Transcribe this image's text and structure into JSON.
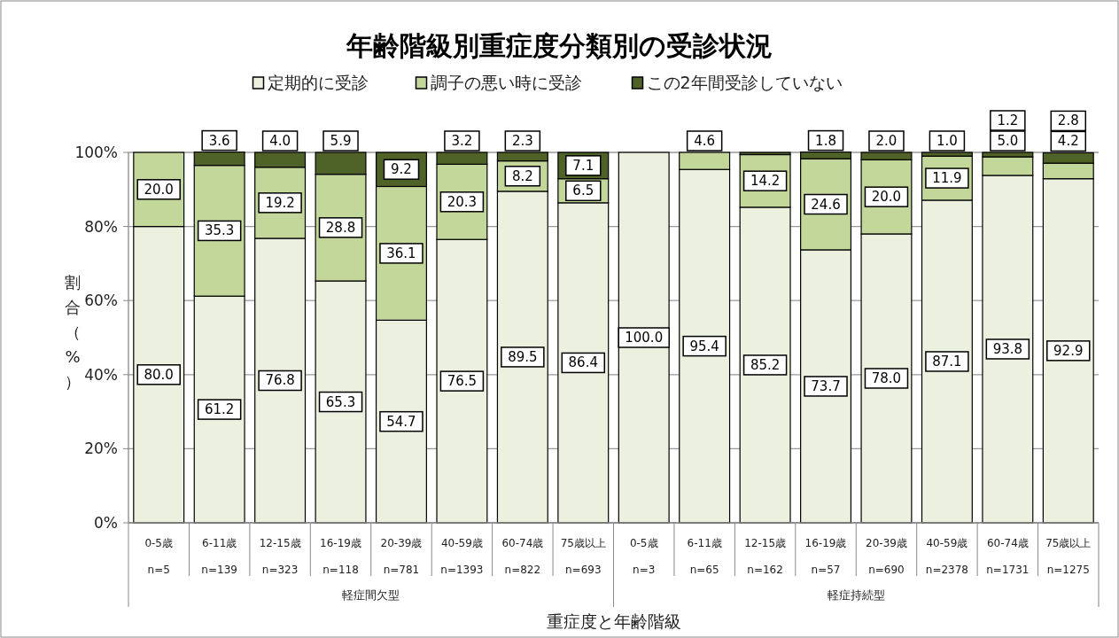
{
  "chart_data": {
    "type": "bar",
    "stacked": true,
    "title": "年齢階級別重症度分類別の受診状況",
    "xlabel": "重症度と年齢階級",
    "ylabel": "割合（%）",
    "categories": [
      "0-5歳\nn=5",
      "6-11歳\nn=139",
      "12-15歳\nn=323",
      "16-19歳\nn=118",
      "20-39歳\nn=781",
      "40-59歳\nn=1393",
      "60-74歳\nn=822",
      "75歳以上\nn=693",
      "0-5歳\nn=3",
      "6-11歳\nn=65",
      "12-15歳\nn=162",
      "16-19歳\nn=57",
      "20-39歳\nn=690",
      "40-59歳\nn=2378",
      "60-74歳\nn=1731",
      "75歳以上\nn=1275"
    ],
    "annotations": [
      "軽症間欠型",
      "軽症持続型"
    ],
    "series": [
      {
        "name": "定期的に受診",
        "color": "#ebf1de",
        "values": [
          80.0,
          61.2,
          76.8,
          65.3,
          54.7,
          76.5,
          89.5,
          86.4,
          100.0,
          95.4,
          85.2,
          73.7,
          78.0,
          87.1,
          93.8,
          92.9
        ],
        "value_labels": [
          "80.0",
          "61.2",
          "76.8",
          "65.3",
          "54.7",
          "76.5",
          "89.5",
          "86.4",
          "100.0",
          "95.4",
          "85.2",
          "73.7",
          "78.0",
          "87.1",
          "93.8",
          "92.9"
        ]
      },
      {
        "name": "調子の悪い時に受診",
        "color": "#c4d79b",
        "values": [
          20.0,
          35.3,
          19.2,
          28.8,
          36.1,
          20.3,
          8.2,
          6.5,
          null,
          4.6,
          14.2,
          24.6,
          20.0,
          11.9,
          5.0,
          4.2
        ],
        "value_labels": [
          "20.0",
          "35.3",
          "19.2",
          "28.8",
          "36.1",
          "20.3",
          "8.2",
          "6.5",
          null,
          "4.6",
          "14.2",
          "24.6",
          "20.0",
          "11.9",
          "5.0",
          "4.2"
        ]
      },
      {
        "name": "この2年間受診していない",
        "color": "#4f6228",
        "values": [
          null,
          3.6,
          4.0,
          5.9,
          9.2,
          3.2,
          2.3,
          7.1,
          null,
          null,
          0.6,
          1.8,
          2.0,
          1.0,
          1.2,
          2.8
        ],
        "value_labels": [
          null,
          "3.6",
          "4.0",
          "5.9",
          "9.2",
          "3.2",
          "2.3",
          "7.1",
          null,
          null,
          null,
          "1.8",
          "2.0",
          "1.0",
          "1.2",
          "2.8"
        ]
      }
    ],
    "ylim": [
      0,
      100
    ],
    "yticks": [
      {
        "value": 0,
        "label": "0%"
      },
      {
        "value": 20,
        "label": "20%"
      },
      {
        "value": 40,
        "label": "40%"
      },
      {
        "value": 60,
        "label": "60%"
      },
      {
        "value": 80,
        "label": "80%"
      },
      {
        "value": 100,
        "label": "100%"
      }
    ],
    "grid": "y",
    "legend": "top"
  }
}
